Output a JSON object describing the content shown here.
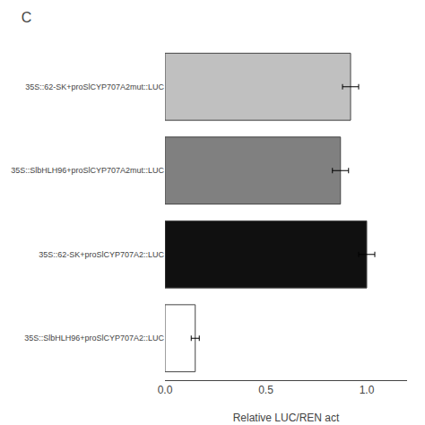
{
  "chart_data": {
    "type": "bar",
    "orientation": "horizontal",
    "title": "C",
    "x_label": "Relative LUC/REN act",
    "categories": [
      "35S::62-SK+proSlCYP707A2mut::LUC",
      "35S::SlbHLH96+proSlCYP707A2mut::LUC",
      "35S::62-SK+proSlCYP707A2::LUC",
      "35S::SlbHLH96+proSlCYP707A2::LUC"
    ],
    "values": [
      0.92,
      0.87,
      1.0,
      0.15
    ],
    "errors": [
      0.04,
      0.04,
      0.04,
      0.02
    ],
    "colors": [
      "#c0c0c0",
      "#808080",
      "#101010",
      "#ffffff"
    ],
    "xlim": [
      0,
      1.2
    ],
    "xticks": [
      {
        "value": 0,
        "label": "0.0"
      },
      0.5,
      {
        "value": 1,
        "label": "1.0"
      }
    ],
    "grid": false,
    "legend": "none"
  }
}
